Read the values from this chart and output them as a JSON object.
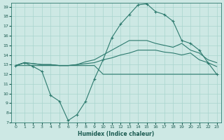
{
  "xlabel": "Humidex (Indice chaleur)",
  "bg_color": "#cde8e4",
  "grid_color": "#a8d4ce",
  "line_color": "#2d7a6e",
  "xlim": [
    -0.5,
    23.5
  ],
  "ylim": [
    7,
    19.4
  ],
  "yticks": [
    7,
    8,
    9,
    10,
    11,
    12,
    13,
    14,
    15,
    16,
    17,
    18,
    19
  ],
  "xticks": [
    0,
    1,
    2,
    3,
    4,
    5,
    6,
    7,
    8,
    9,
    10,
    11,
    12,
    13,
    14,
    15,
    16,
    17,
    18,
    19,
    20,
    21,
    22,
    23
  ],
  "series": [
    {
      "x": [
        0,
        1,
        2,
        3,
        4,
        5,
        6,
        7,
        8,
        9,
        10,
        11,
        12,
        13,
        14,
        15,
        16,
        17,
        18,
        19,
        20,
        21,
        22,
        23
      ],
      "y": [
        12.9,
        12.9,
        12.9,
        12.9,
        12.9,
        12.9,
        12.9,
        12.9,
        12.9,
        12.9,
        12.0,
        12.0,
        12.0,
        12.0,
        12.0,
        12.0,
        12.0,
        12.0,
        12.0,
        12.0,
        12.0,
        12.0,
        12.0,
        12.0
      ],
      "markers": false
    },
    {
      "x": [
        0,
        1,
        2,
        3,
        4,
        5,
        6,
        7,
        8,
        9,
        10,
        11,
        12,
        13,
        14,
        15,
        16,
        17,
        18,
        19,
        20,
        21,
        22,
        23
      ],
      "y": [
        12.9,
        13.2,
        13.1,
        13.0,
        13.0,
        12.9,
        12.9,
        13.0,
        13.1,
        13.2,
        13.5,
        13.7,
        14.0,
        14.2,
        14.5,
        14.5,
        14.5,
        14.3,
        14.2,
        14.0,
        14.2,
        13.5,
        13.2,
        12.8
      ],
      "markers": false
    },
    {
      "x": [
        0,
        1,
        2,
        3,
        4,
        5,
        6,
        7,
        8,
        9,
        10,
        11,
        12,
        13,
        14,
        15,
        16,
        17,
        18,
        19,
        20,
        21,
        22,
        23
      ],
      "y": [
        12.9,
        13.2,
        13.1,
        13.0,
        13.0,
        12.9,
        12.9,
        13.0,
        13.3,
        13.5,
        14.0,
        14.5,
        15.0,
        15.5,
        15.5,
        15.5,
        15.2,
        15.0,
        14.8,
        15.2,
        14.5,
        14.2,
        13.5,
        13.2
      ],
      "markers": false
    },
    {
      "x": [
        0,
        1,
        2,
        3,
        4,
        5,
        6,
        7,
        8,
        9,
        10,
        11,
        12,
        13,
        14,
        15,
        16,
        17,
        18,
        19,
        20,
        21,
        22,
        23
      ],
      "y": [
        12.9,
        13.2,
        12.8,
        12.3,
        9.8,
        9.2,
        7.2,
        7.8,
        9.2,
        11.5,
        13.5,
        15.8,
        17.2,
        18.2,
        19.2,
        19.3,
        18.5,
        18.2,
        17.5,
        15.5,
        15.2,
        14.5,
        13.2,
        12.0
      ],
      "markers": true
    }
  ]
}
